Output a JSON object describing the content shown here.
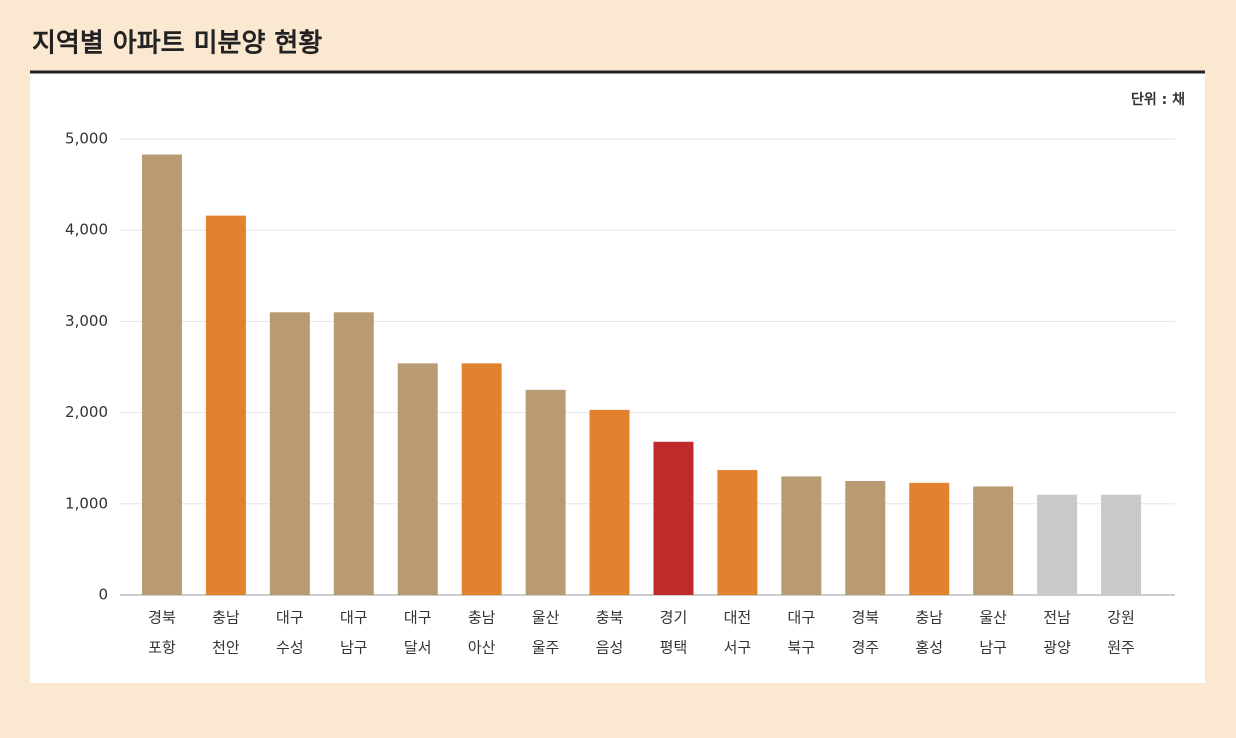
{
  "chart_data": {
    "type": "bar",
    "title": "지역별 아파트 미분양 현황",
    "unit": "단위 : 채",
    "categories": [
      [
        "경북",
        "포항"
      ],
      [
        "충남",
        "천안"
      ],
      [
        "대구",
        "수성"
      ],
      [
        "대구",
        "남구"
      ],
      [
        "대구",
        "달서"
      ],
      [
        "충남",
        "아산"
      ],
      [
        "울산",
        "울주"
      ],
      [
        "충북",
        "음성"
      ],
      [
        "경기",
        "평택"
      ],
      [
        "대전",
        "서구"
      ],
      [
        "대구",
        "북구"
      ],
      [
        "경북",
        "경주"
      ],
      [
        "충남",
        "홍성"
      ],
      [
        "울산",
        "남구"
      ],
      [
        "전남",
        "광양"
      ],
      [
        "강원",
        "원주"
      ]
    ],
    "values": [
      4830,
      4160,
      3100,
      3100,
      2540,
      2540,
      2250,
      2030,
      1680,
      1370,
      1300,
      1250,
      1230,
      1190,
      1100,
      1100
    ],
    "colors": [
      "#b99b73",
      "#e2822f",
      "#b99b73",
      "#b99b73",
      "#b99b73",
      "#e2822f",
      "#b99b73",
      "#e2822f",
      "#bf2b2b",
      "#e2822f",
      "#b99b73",
      "#b99b73",
      "#e2822f",
      "#b99b73",
      "#c9c9c9",
      "#c9c9c9"
    ],
    "ylim": [
      0,
      5000
    ],
    "yticks": [
      0,
      {
        "value": 1000,
        "label": "1,000"
      },
      {
        "value": 2000,
        "label": "2,000"
      },
      {
        "value": 3000,
        "label": "3,000"
      },
      {
        "value": 4000,
        "label": "4,000"
      },
      {
        "value": 5000,
        "label": "5,000"
      }
    ],
    "grid": true
  }
}
